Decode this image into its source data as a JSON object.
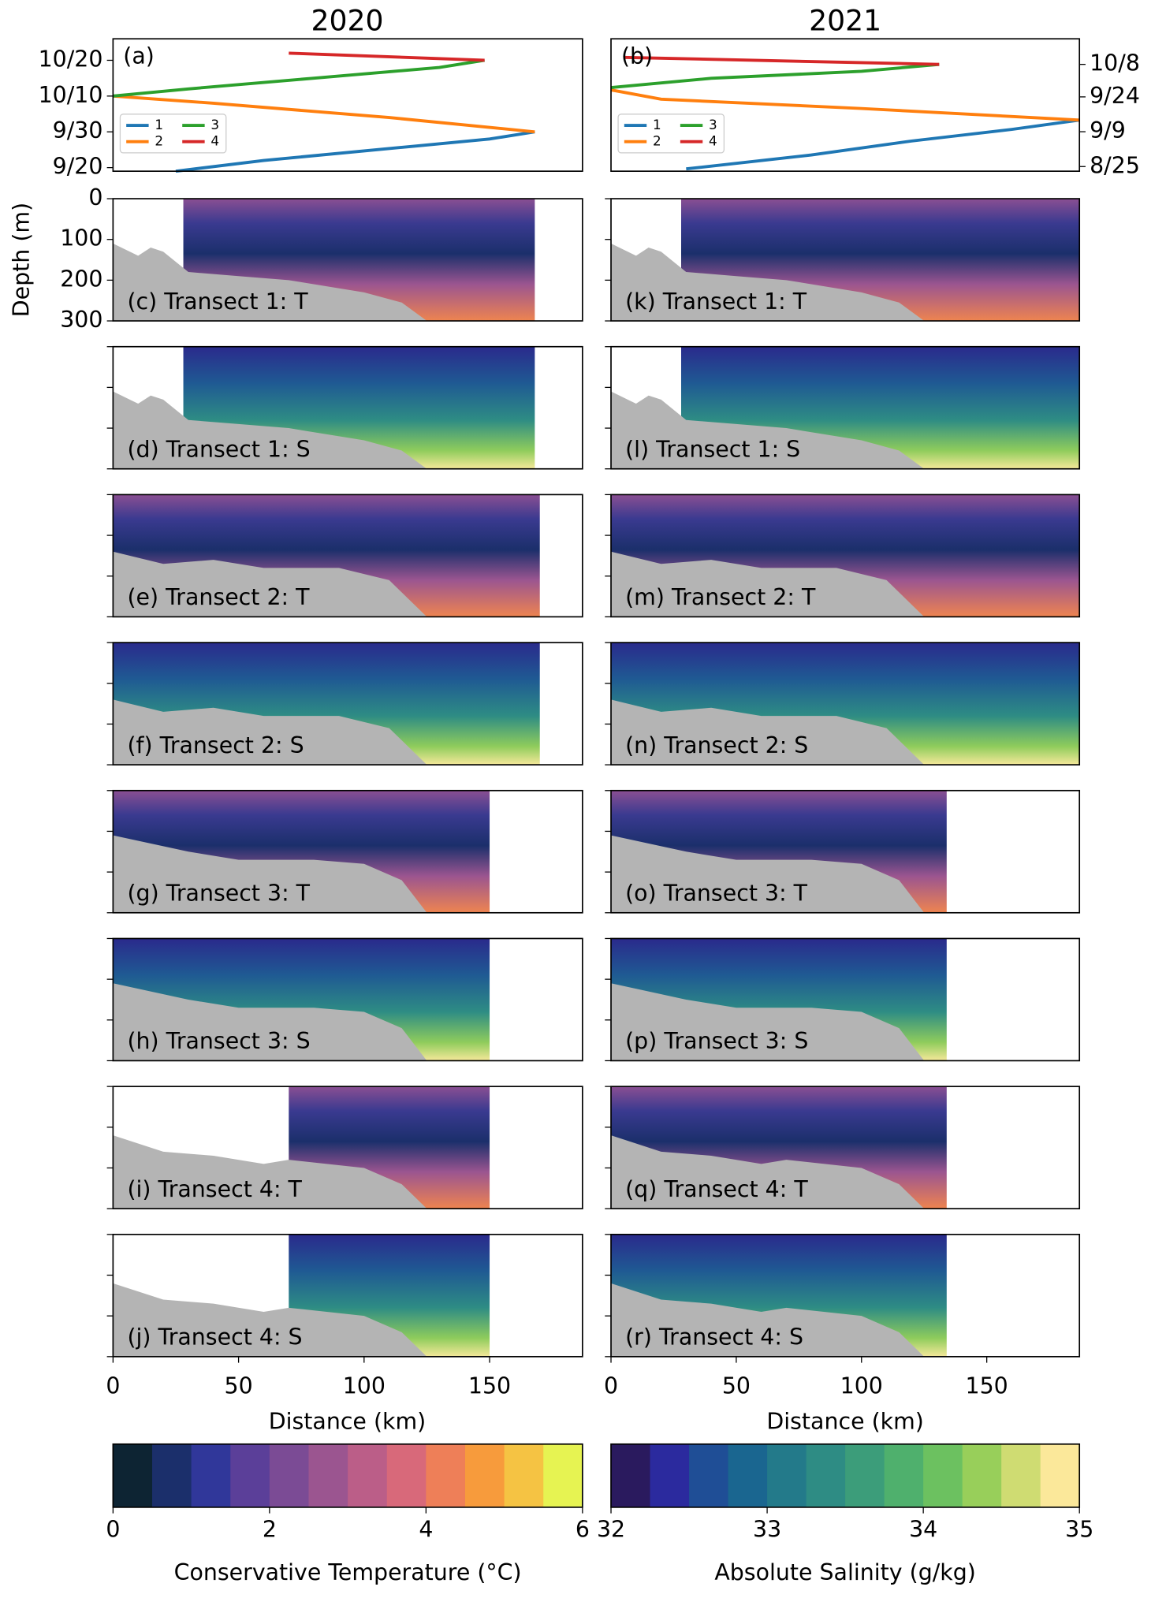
{
  "figure_titles": [
    "2020",
    "2021"
  ],
  "depth_axis": {
    "label": "Depth (m)",
    "ylim": [
      0,
      300
    ],
    "yticks": [
      0,
      100,
      200,
      300
    ]
  },
  "distance_axis": {
    "label": "Distance (km)",
    "xlim": [
      0,
      187
    ],
    "xticks": [
      0,
      50,
      100,
      150
    ]
  },
  "chart_data": [
    {
      "type": "line",
      "label": "(a)",
      "xlim": [
        0,
        187
      ],
      "ylim": [
        "9/19",
        "10/26"
      ],
      "yticks": [
        "9/20",
        "9/30",
        "10/10",
        "10/20"
      ],
      "ytick_side": "left",
      "legend": "lower left",
      "series": [
        {
          "name": "1",
          "color": "#1f77b4",
          "x": [
            25,
            60,
            120,
            150,
            168
          ],
          "values": [
            "9/19",
            "9/22",
            "9/26",
            "9/28",
            "9/30"
          ]
        },
        {
          "name": "2",
          "color": "#ff7f0e",
          "x": [
            168,
            110,
            40,
            0
          ],
          "values": [
            "9/30",
            "10/4",
            "10/8",
            "10/10"
          ]
        },
        {
          "name": "3",
          "color": "#2ca02c",
          "x": [
            0,
            30,
            80,
            130,
            148
          ],
          "values": [
            "10/10",
            "10/12",
            "10/15",
            "10/18",
            "10/20"
          ]
        },
        {
          "name": "4",
          "color": "#d62728",
          "x": [
            148,
            70
          ],
          "values": [
            "10/20",
            "10/22"
          ]
        }
      ]
    },
    {
      "type": "line",
      "label": "(b)",
      "xlim": [
        0,
        187
      ],
      "ylim": [
        "8/23",
        "10/19"
      ],
      "yticks": [
        "8/25",
        "9/9",
        "9/24",
        "10/8"
      ],
      "ytick_side": "right",
      "legend": "lower left",
      "series": [
        {
          "name": "1",
          "color": "#1f77b4",
          "x": [
            30,
            80,
            120,
            160,
            187
          ],
          "values": [
            "8/24",
            "8/30",
            "9/5",
            "9/10",
            "9/14"
          ]
        },
        {
          "name": "2",
          "color": "#ff7f0e",
          "x": [
            187,
            100,
            20,
            0
          ],
          "values": [
            "9/14",
            "9/19",
            "9/23",
            "9/27"
          ]
        },
        {
          "name": "3",
          "color": "#2ca02c",
          "x": [
            0,
            40,
            100,
            131
          ],
          "values": [
            "9/28",
            "10/2",
            "10/5",
            "10/8"
          ]
        },
        {
          "name": "4",
          "color": "#d62728",
          "x": [
            131,
            5
          ],
          "values": [
            "10/8",
            "10/11"
          ]
        }
      ]
    }
  ],
  "seafloor": [
    {
      "x": [
        0,
        10,
        15,
        20,
        30,
        50,
        70,
        100,
        115,
        125
      ],
      "depth": [
        110,
        140,
        120,
        130,
        180,
        190,
        200,
        230,
        255,
        300
      ]
    },
    {
      "x": [
        0,
        20,
        40,
        60,
        90,
        110,
        125
      ],
      "depth": [
        140,
        170,
        160,
        180,
        180,
        210,
        300
      ]
    },
    {
      "x": [
        0,
        30,
        50,
        80,
        100,
        115,
        125
      ],
      "depth": [
        110,
        150,
        170,
        170,
        180,
        220,
        300
      ]
    },
    {
      "x": [
        0,
        20,
        40,
        60,
        70,
        100,
        115,
        125
      ],
      "depth": [
        120,
        160,
        170,
        190,
        180,
        200,
        240,
        300
      ]
    }
  ],
  "sections": [
    [
      {
        "label": "(c) Transect 1: T",
        "extent": [
          28,
          168
        ]
      },
      {
        "label": "(k) Transect 1: T",
        "extent": [
          28,
          187
        ]
      }
    ],
    [
      {
        "label": "(d) Transect 1: S",
        "extent": [
          28,
          168
        ]
      },
      {
        "label": "(l) Transect 1: S",
        "extent": [
          28,
          187
        ]
      }
    ],
    [
      {
        "label": "(e) Transect 2: T",
        "extent": [
          0,
          170
        ]
      },
      {
        "label": "(m) Transect 2: T",
        "extent": [
          0,
          187
        ]
      }
    ],
    [
      {
        "label": "(f) Transect 2: S",
        "extent": [
          0,
          170
        ]
      },
      {
        "label": "(n) Transect 2: S",
        "extent": [
          0,
          187
        ]
      }
    ],
    [
      {
        "label": "(g) Transect 3: T",
        "extent": [
          0,
          150
        ]
      },
      {
        "label": "(o) Transect 3: T",
        "extent": [
          0,
          134
        ]
      }
    ],
    [
      {
        "label": "(h) Transect 3: S",
        "extent": [
          0,
          150
        ]
      },
      {
        "label": "(p) Transect 3: S",
        "extent": [
          0,
          134
        ]
      }
    ],
    [
      {
        "label": "(i) Transect 4: T",
        "extent": [
          70,
          150
        ]
      },
      {
        "label": "(q) Transect 4: T",
        "extent": [
          0,
          134
        ]
      }
    ],
    [
      {
        "label": "(j) Transect 4: S",
        "extent": [
          70,
          150
        ]
      },
      {
        "label": "(r) Transect 4: S",
        "extent": [
          0,
          134
        ]
      }
    ]
  ],
  "colorbars": [
    {
      "label": "Conservative Temperature (°C)",
      "clim": [
        0,
        6
      ],
      "ticks": [
        0,
        2,
        4,
        6
      ],
      "colors": [
        "#0d2433",
        "#1b2f6b",
        "#30379a",
        "#5b3f99",
        "#7b4b95",
        "#9b5590",
        "#bb5e88",
        "#d8697a",
        "#ee7f58",
        "#f79b3c",
        "#f5c343",
        "#e6f352"
      ]
    },
    {
      "label": "Absolute Salinity (g/kg)",
      "clim": [
        32,
        35
      ],
      "ticks": [
        32,
        33,
        34,
        35
      ],
      "colors": [
        "#2a1a5e",
        "#2b2a9e",
        "#1f4e96",
        "#1a6690",
        "#237a8a",
        "#2e8c84",
        "#3c9d7a",
        "#4fb06d",
        "#6cc160",
        "#98cf5a",
        "#cfdc72",
        "#fbe89a"
      ]
    }
  ]
}
